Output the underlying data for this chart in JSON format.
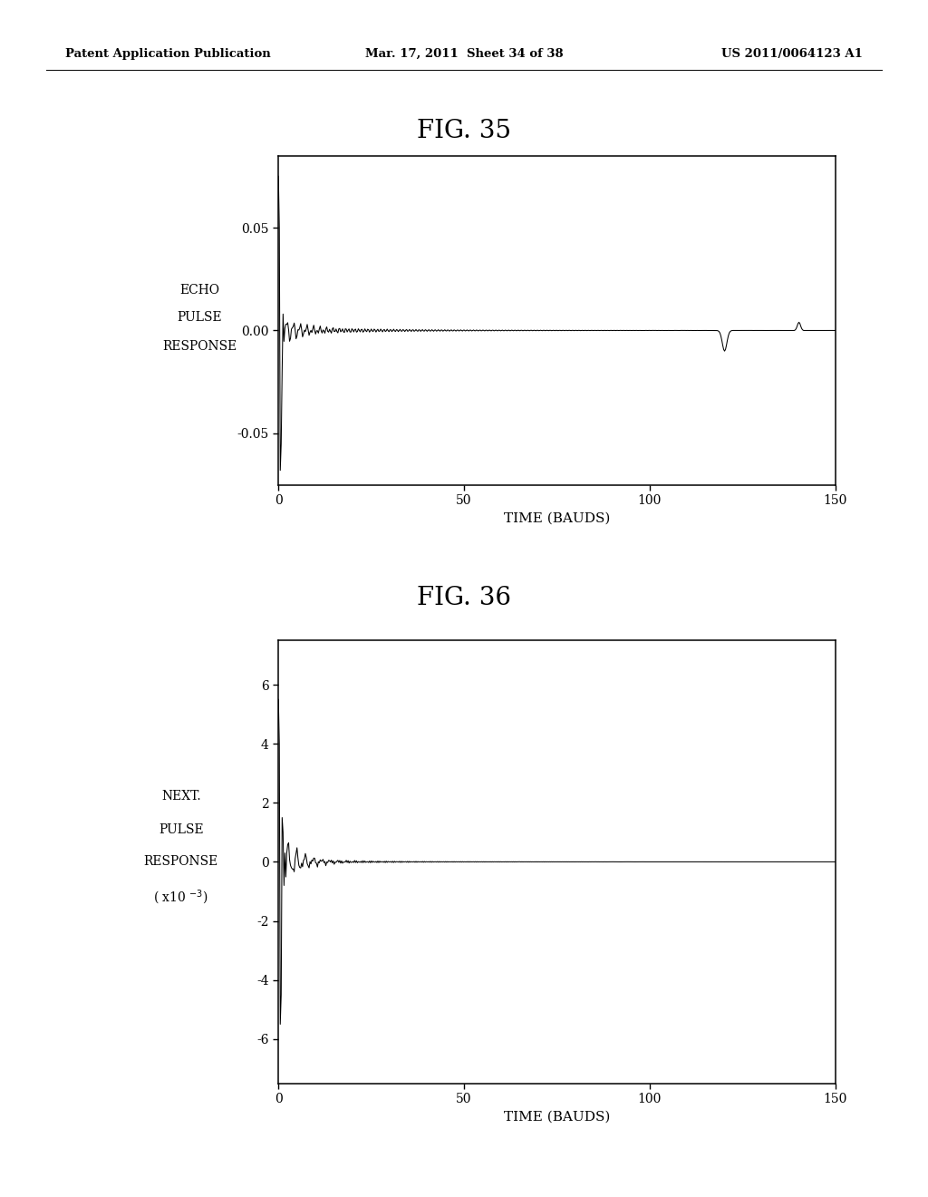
{
  "header_left": "Patent Application Publication",
  "header_mid": "Mar. 17, 2011  Sheet 34 of 38",
  "header_right": "US 2011/0064123 A1",
  "fig35_title": "FIG. 35",
  "fig36_title": "FIG. 36",
  "fig35_xlabel": "TIME (BAUDS)",
  "fig35_ylim": [
    -0.075,
    0.085
  ],
  "fig35_yticks": [
    -0.05,
    0.0,
    0.05
  ],
  "fig35_ytick_labels": [
    "-0.05",
    "0.00",
    "0.05"
  ],
  "fig35_xlim": [
    0,
    150
  ],
  "fig35_xticks": [
    0,
    50,
    100,
    150
  ],
  "fig36_xlabel": "TIME (BAUDS)",
  "fig36_ylim": [
    -7.5,
    7.5
  ],
  "fig36_yticks": [
    -6,
    -4,
    -2,
    0,
    2,
    4,
    6
  ],
  "fig36_ytick_labels": [
    "-6",
    "-4",
    "-2",
    "0",
    "2",
    "4",
    "6"
  ],
  "fig36_xlim": [
    0,
    150
  ],
  "fig36_xticks": [
    0,
    50,
    100,
    150
  ],
  "background_color": "#ffffff",
  "line_color": "#000000",
  "text_color": "#000000"
}
